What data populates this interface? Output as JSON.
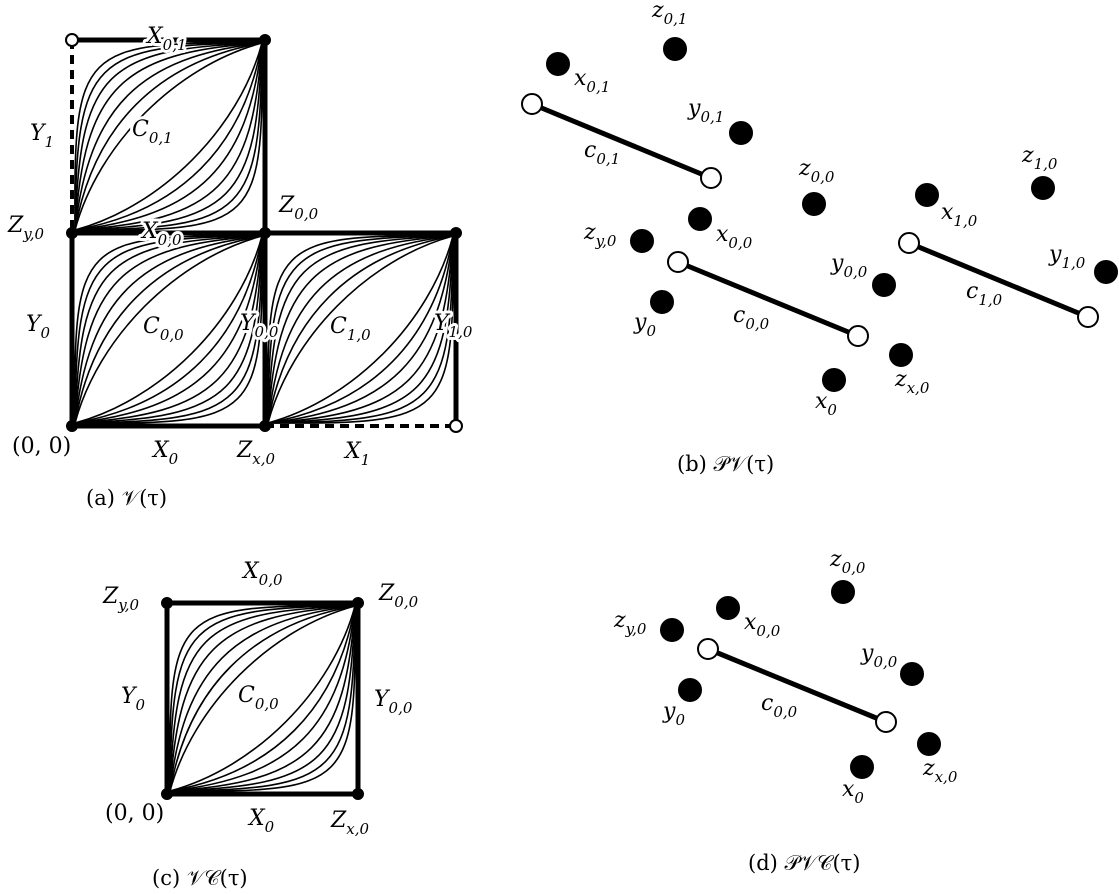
{
  "panel_a": {
    "caption": "(a) 𝒱(τ)",
    "labels": {
      "X01": {
        "main": "X",
        "sub": "0,1"
      },
      "Y1": {
        "main": "Y",
        "sub": "1"
      },
      "C01": {
        "main": "C",
        "sub": "0,1"
      },
      "Zy0": {
        "main": "Z",
        "sub": "y,0"
      },
      "X00": {
        "main": "X",
        "sub": "0,0"
      },
      "Z00": {
        "main": "Z",
        "sub": "0,0"
      },
      "Y0": {
        "main": "Y",
        "sub": "0"
      },
      "C00": {
        "main": "C",
        "sub": "0,0"
      },
      "Y00": {
        "main": "Y",
        "sub": "0,0"
      },
      "C10": {
        "main": "C",
        "sub": "1,0"
      },
      "Y10": {
        "main": "Y",
        "sub": "1,0"
      },
      "origin": "(0, 0)",
      "X0": {
        "main": "X",
        "sub": "0"
      },
      "Zx0": {
        "main": "Z",
        "sub": "x,0"
      },
      "X1": {
        "main": "X",
        "sub": "1"
      }
    }
  },
  "panel_b": {
    "caption": "(b) 𝒫𝒱(τ)",
    "labels": {
      "z01": {
        "main": "z",
        "sub": "0,1"
      },
      "x01": {
        "main": "x",
        "sub": "0,1"
      },
      "y01": {
        "main": "y",
        "sub": "0,1"
      },
      "c01": {
        "main": "c",
        "sub": "0,1"
      },
      "z00": {
        "main": "z",
        "sub": "0,0"
      },
      "z10": {
        "main": "z",
        "sub": "1,0"
      },
      "x10": {
        "main": "x",
        "sub": "1,0"
      },
      "zy0": {
        "main": "z",
        "sub": "y,0"
      },
      "x00": {
        "main": "x",
        "sub": "0,0"
      },
      "y00": {
        "main": "y",
        "sub": "0,0"
      },
      "y10": {
        "main": "y",
        "sub": "1,0"
      },
      "c10": {
        "main": "c",
        "sub": "1,0"
      },
      "y0": {
        "main": "y",
        "sub": "0"
      },
      "c00": {
        "main": "c",
        "sub": "0,0"
      },
      "zx0": {
        "main": "z",
        "sub": "x,0"
      },
      "x0": {
        "main": "x",
        "sub": "0"
      }
    }
  },
  "panel_c": {
    "caption": "(c) 𝒱𝒞(τ)",
    "labels": {
      "X00": {
        "main": "X",
        "sub": "0,0"
      },
      "Zy0": {
        "main": "Z",
        "sub": "y,0"
      },
      "Z00": {
        "main": "Z",
        "sub": "0,0"
      },
      "Y0": {
        "main": "Y",
        "sub": "0"
      },
      "C00": {
        "main": "C",
        "sub": "0,0"
      },
      "Y00": {
        "main": "Y",
        "sub": "0,0"
      },
      "origin": "(0, 0)",
      "X0": {
        "main": "X",
        "sub": "0"
      },
      "Zx0": {
        "main": "Z",
        "sub": "x,0"
      }
    }
  },
  "panel_d": {
    "caption": "(d) 𝒫𝒱𝒞(τ)",
    "labels": {
      "z00": {
        "main": "z",
        "sub": "0,0"
      },
      "zy0": {
        "main": "z",
        "sub": "y,0"
      },
      "x00": {
        "main": "x",
        "sub": "0,0"
      },
      "y00": {
        "main": "y",
        "sub": "0,0"
      },
      "y0": {
        "main": "y",
        "sub": "0"
      },
      "c00": {
        "main": "c",
        "sub": "0,0"
      },
      "zx0": {
        "main": "z",
        "sub": "x,0"
      },
      "x0": {
        "main": "x",
        "sub": "0"
      }
    }
  }
}
